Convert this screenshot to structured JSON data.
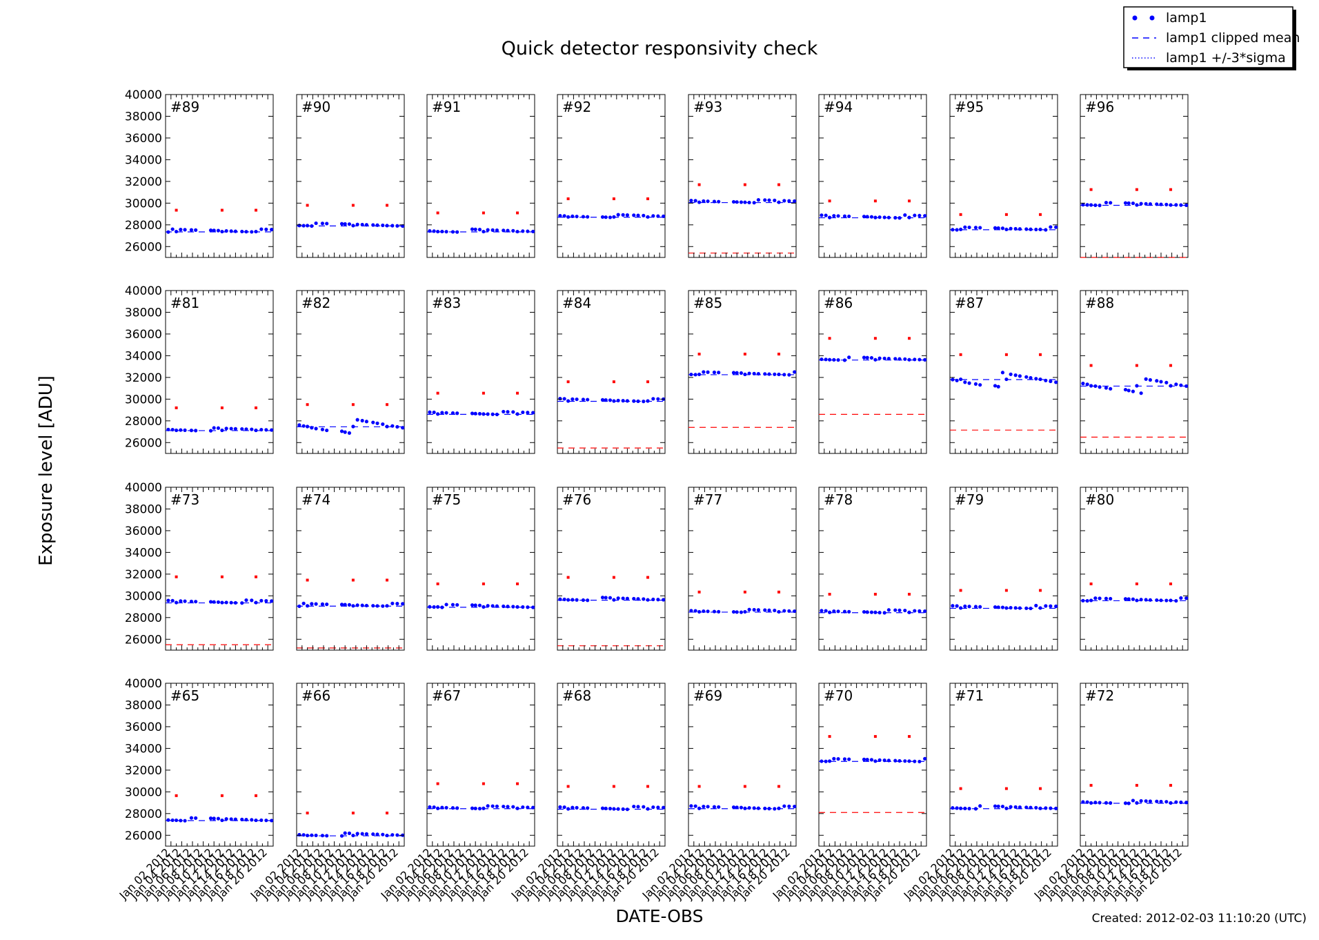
{
  "figure": {
    "title": "Quick detector responsivity check",
    "xlabel": "DATE-OBS",
    "ylabel": "Exposure level [ADU]",
    "footer": "Created: 2012-02-03 11:10:20 (UTC)"
  },
  "legend": {
    "placement": "top-right",
    "items": [
      {
        "label": "lamp1",
        "style": "dots",
        "color": "#0000ff"
      },
      {
        "label": "lamp1 clipped mean",
        "style": "dashed",
        "color": "#0000ff"
      },
      {
        "label": "lamp1 +/-3*sigma",
        "style": "dotted",
        "color": "#0000ff"
      }
    ]
  },
  "colors": {
    "series": "#0000ff",
    "outlier": "#ff0000"
  },
  "chart_data": {
    "type": "scatter",
    "layout": "small-multiples 4x8",
    "ylim": [
      25000,
      40000
    ],
    "yticks": [
      26000,
      28000,
      30000,
      32000,
      34000,
      36000,
      38000,
      40000
    ],
    "xlim_days": [
      1,
      21
    ],
    "xticks": [
      "Jan 02 2012",
      "Jan 04 2012",
      "Jan 06 2012",
      "Jan 08 2012",
      "Jan 10 2012",
      "Jan 12 2012",
      "Jan 14 2012",
      "Jan 16 2012",
      "Jan 18 2012",
      "Jan 20 2012"
    ],
    "obs_days": [
      1.5,
      2.3,
      3.0,
      3.8,
      4.6,
      5.8,
      6.6,
      9.4,
      10.0,
      10.8,
      11.5,
      12.3,
      13.2,
      14.0,
      15.2,
      16.0,
      17.0,
      17.8,
      18.8,
      19.7,
      20.7
    ],
    "outlier_days": [
      3.0,
      11.5,
      17.8
    ],
    "panels": [
      {
        "label": "#89",
        "mean": 27350,
        "outlier": 29350
      },
      {
        "label": "#90",
        "mean": 27900,
        "outlier": 29800
      },
      {
        "label": "#91",
        "mean": 27350,
        "outlier": 29100
      },
      {
        "label": "#92",
        "mean": 28700,
        "outlier": 30400
      },
      {
        "label": "#93",
        "mean": 30050,
        "outlier": 31700,
        "lower": 25400
      },
      {
        "label": "#94",
        "mean": 28650,
        "outlier": 30200
      },
      {
        "label": "#95",
        "mean": 27550,
        "outlier": 28950
      },
      {
        "label": "#96",
        "mean": 29800,
        "outlier": 31250,
        "lower": 25000
      },
      {
        "label": "#81",
        "mean": 27100,
        "outlier": 29200
      },
      {
        "label": "#82",
        "mean": 27450,
        "outlier": 29500
      },
      {
        "label": "#83",
        "mean": 28600,
        "outlier": 30550
      },
      {
        "label": "#84",
        "mean": 29800,
        "outlier": 31600,
        "lower": 25500
      },
      {
        "label": "#85",
        "mean": 32250,
        "outlier": 34150,
        "lower": 27400
      },
      {
        "label": "#86",
        "mean": 33600,
        "outlier": 35600,
        "lower": 28600
      },
      {
        "label": "#87",
        "mean": 31800,
        "outlier": 34100,
        "lower": 27150
      },
      {
        "label": "#88",
        "mean": 31200,
        "outlier": 33100,
        "lower": 26500
      },
      {
        "label": "#73",
        "mean": 29350,
        "outlier": 31750,
        "lower": 25500
      },
      {
        "label": "#74",
        "mean": 29050,
        "outlier": 31450,
        "lower": 25200
      },
      {
        "label": "#75",
        "mean": 28950,
        "outlier": 31100
      },
      {
        "label": "#76",
        "mean": 29600,
        "outlier": 31700,
        "lower": 25400
      },
      {
        "label": "#77",
        "mean": 28500,
        "outlier": 30350
      },
      {
        "label": "#78",
        "mean": 28450,
        "outlier": 30150
      },
      {
        "label": "#79",
        "mean": 28850,
        "outlier": 30500
      },
      {
        "label": "#80",
        "mean": 29550,
        "outlier": 31100
      },
      {
        "label": "#65",
        "mean": 27350,
        "outlier": 29650
      },
      {
        "label": "#66",
        "mean": 25950,
        "outlier": 28050
      },
      {
        "label": "#67",
        "mean": 28450,
        "outlier": 30750
      },
      {
        "label": "#68",
        "mean": 28400,
        "outlier": 30500
      },
      {
        "label": "#69",
        "mean": 28450,
        "outlier": 30500
      },
      {
        "label": "#70",
        "mean": 32800,
        "outlier": 35100,
        "lower": 28100
      },
      {
        "label": "#71",
        "mean": 28450,
        "outlier": 30300
      },
      {
        "label": "#72",
        "mean": 28950,
        "outlier": 30600
      }
    ]
  }
}
